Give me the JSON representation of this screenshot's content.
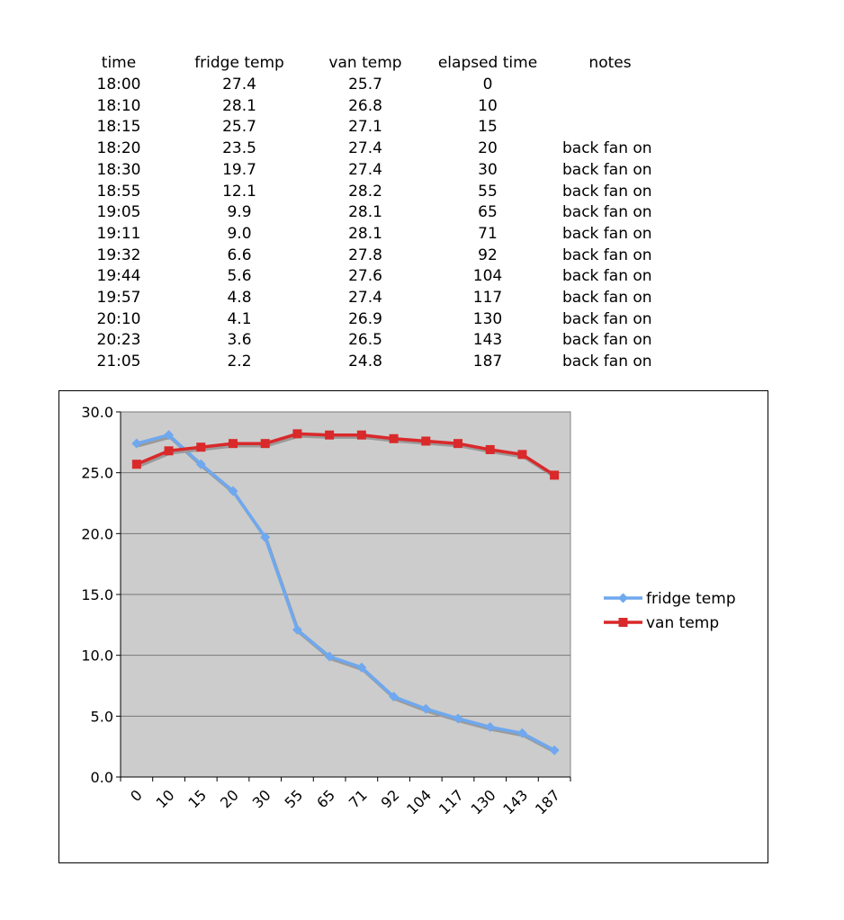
{
  "table": {
    "headers": [
      "time",
      "fridge temp",
      "van temp",
      "elapsed time",
      "notes"
    ],
    "rows": [
      [
        "18:00",
        "27.4",
        "25.7",
        "0",
        ""
      ],
      [
        "18:10",
        "28.1",
        "26.8",
        "10",
        ""
      ],
      [
        "18:15",
        "25.7",
        "27.1",
        "15",
        ""
      ],
      [
        "18:20",
        "23.5",
        "27.4",
        "20",
        "back fan on"
      ],
      [
        "18:30",
        "19.7",
        "27.4",
        "30",
        "back fan on"
      ],
      [
        "18:55",
        "12.1",
        "28.2",
        "55",
        "back fan on"
      ],
      [
        "19:05",
        "9.9",
        "28.1",
        "65",
        "back fan on"
      ],
      [
        "19:11",
        "9.0",
        "28.1",
        "71",
        "back fan on"
      ],
      [
        "19:32",
        "6.6",
        "27.8",
        "92",
        "back fan on"
      ],
      [
        "19:44",
        "5.6",
        "27.6",
        "104",
        "back fan on"
      ],
      [
        "19:57",
        "4.8",
        "27.4",
        "117",
        "back fan on"
      ],
      [
        "20:10",
        "4.1",
        "26.9",
        "130",
        "back fan on"
      ],
      [
        "20:23",
        "3.6",
        "26.5",
        "143",
        "back fan on"
      ],
      [
        "21:05",
        "2.2",
        "24.8",
        "187",
        "back fan on"
      ]
    ]
  },
  "chart_data": {
    "type": "line",
    "categories": [
      "0",
      "10",
      "15",
      "20",
      "30",
      "55",
      "65",
      "71",
      "92",
      "104",
      "117",
      "130",
      "143",
      "187"
    ],
    "series": [
      {
        "name": "fridge temp",
        "color": "#6fa8ee",
        "marker": "diamond",
        "values": [
          27.4,
          28.1,
          25.7,
          23.5,
          19.7,
          12.1,
          9.9,
          9.0,
          6.6,
          5.6,
          4.8,
          4.1,
          3.6,
          2.2
        ]
      },
      {
        "name": "van temp",
        "color": "#d9292b",
        "marker": "square",
        "values": [
          25.7,
          26.8,
          27.1,
          27.4,
          27.4,
          28.2,
          28.1,
          28.1,
          27.8,
          27.6,
          27.4,
          26.9,
          26.5,
          24.8
        ]
      }
    ],
    "yticks": [
      "0.0",
      "5.0",
      "10.0",
      "15.0",
      "20.0",
      "25.0",
      "30.0"
    ],
    "ylim": [
      0,
      30
    ],
    "plot_background": "#cccccc",
    "grid": true,
    "legend_position": "right"
  }
}
